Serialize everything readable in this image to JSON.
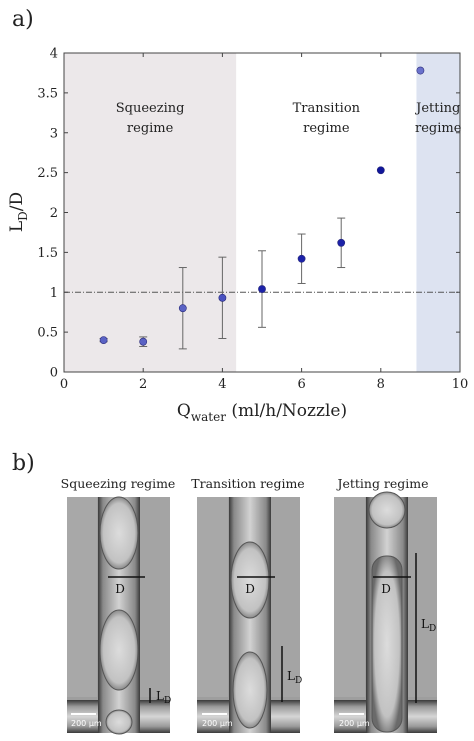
{
  "panel_a": {
    "label": "a)",
    "chart_data": {
      "type": "scatter",
      "xlabel_main": "Q",
      "xlabel_sub": "water",
      "xlabel_rest": " (ml/h/Nozzle)",
      "ylabel_main": "L",
      "ylabel_sub": "D",
      "ylabel_rest": "/D",
      "xlim": [
        0,
        10
      ],
      "ylim": [
        0,
        4
      ],
      "x_ticks": [
        0,
        2,
        4,
        6,
        8,
        10
      ],
      "y_ticks": [
        0,
        0.5,
        1,
        1.5,
        2,
        2.5,
        3,
        3.5,
        4
      ],
      "x_tick_labels": [
        "0",
        "2",
        "4",
        "6",
        "8",
        "10"
      ],
      "y_tick_labels": [
        "0",
        "0.5",
        "1",
        "1.5",
        "2",
        "2.5",
        "3",
        "3.5",
        "4"
      ],
      "reference_line_y": 1,
      "regions": [
        {
          "name": "Squeezing regime",
          "line1": "Squeezing",
          "line2": "regime",
          "x_start": 0,
          "x_end": 4.35,
          "color": "#ece8ea"
        },
        {
          "name": "Transition regime",
          "line1": "Transition",
          "line2": "regime",
          "x_start": 4.35,
          "x_end": 8.9,
          "color": "#ffffff"
        },
        {
          "name": "Jetting regime",
          "line1": "Jetting",
          "line2": "regime",
          "x_start": 8.9,
          "x_end": 10,
          "color": "#dde3f1"
        }
      ],
      "points": [
        {
          "x": 1,
          "y": 0.4,
          "err": 0.02,
          "color": "#5a62c4"
        },
        {
          "x": 2,
          "y": 0.38,
          "err": 0.06,
          "color": "#5a62c4"
        },
        {
          "x": 3,
          "y": 0.8,
          "err": 0.51,
          "color": "#5a62c4"
        },
        {
          "x": 4,
          "y": 0.93,
          "err": 0.51,
          "color": "#4a52c0"
        },
        {
          "x": 5,
          "y": 1.04,
          "err": 0.48,
          "color": "#1c22a8"
        },
        {
          "x": 6,
          "y": 1.42,
          "err": 0.31,
          "color": "#1c22a8"
        },
        {
          "x": 7,
          "y": 1.62,
          "err": 0.31,
          "color": "#1c22a8"
        },
        {
          "x": 8,
          "y": 2.53,
          "err": 0,
          "color": "#10169a"
        },
        {
          "x": 9,
          "y": 3.78,
          "err": 0,
          "color": "#6a72cc"
        }
      ]
    }
  },
  "panel_b": {
    "label": "b)",
    "images": [
      {
        "title": "Squeezing regime",
        "scale": "200 μm",
        "d_label": "D",
        "ld_main": "L",
        "ld_sub": "D"
      },
      {
        "title": "Transition regime",
        "scale": "200 μm",
        "d_label": "D",
        "ld_main": "L",
        "ld_sub": "D"
      },
      {
        "title": "Jetting regime",
        "scale": "200 μm",
        "d_label": "D",
        "ld_main": "L",
        "ld_sub": "D"
      }
    ]
  }
}
